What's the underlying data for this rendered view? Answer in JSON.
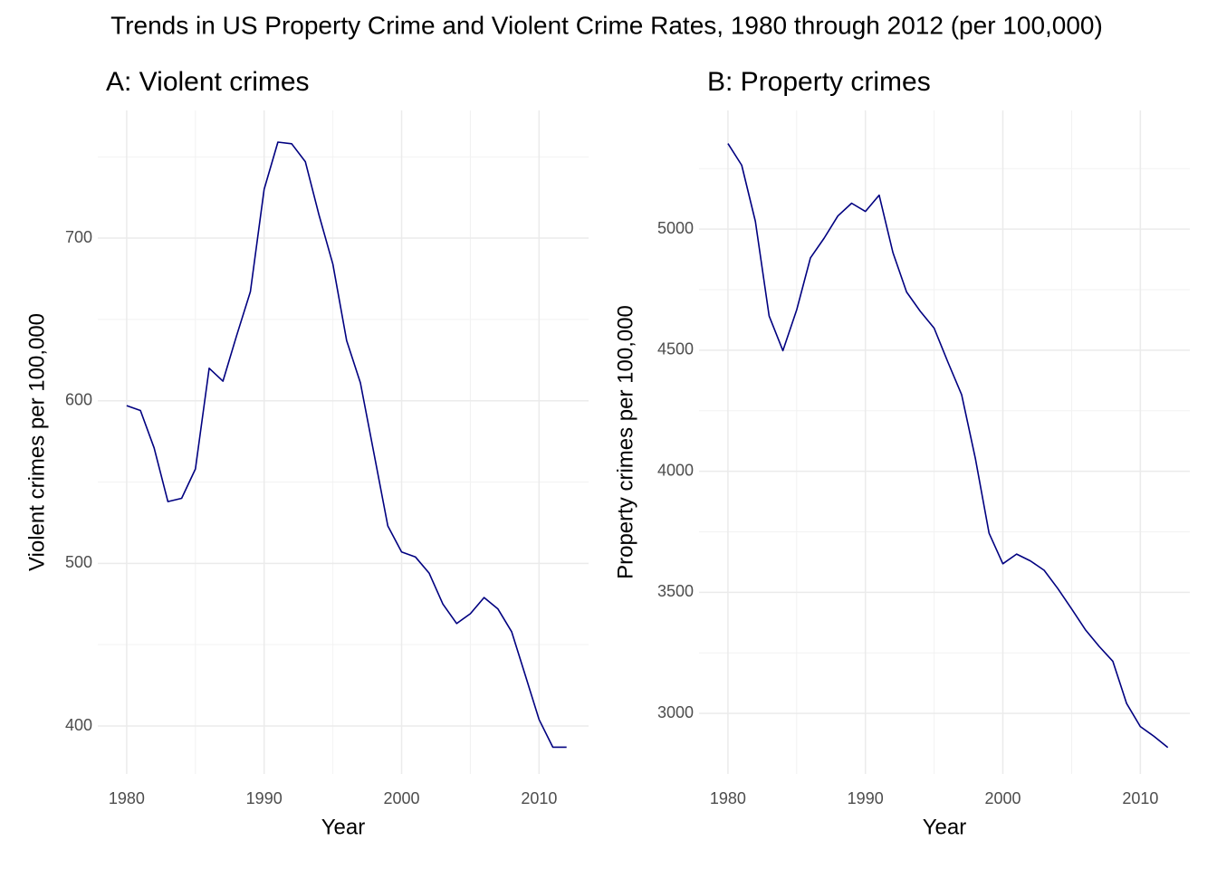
{
  "title": "Trends in US Property Crime and Violent Crime Rates, 1980 through 2012 (per 100,000)",
  "chart_data": [
    {
      "type": "line",
      "title": "A: Violent crimes",
      "x_label": "Year",
      "y_label": "Violent crimes per 100,000",
      "x": [
        1980,
        1981,
        1982,
        1983,
        1984,
        1985,
        1986,
        1987,
        1988,
        1989,
        1990,
        1991,
        1992,
        1993,
        1994,
        1995,
        1996,
        1997,
        1998,
        1999,
        2000,
        2001,
        2002,
        2003,
        2004,
        2005,
        2006,
        2007,
        2008,
        2009,
        2010,
        2011,
        2012
      ],
      "values": [
        597,
        594,
        571,
        538,
        540,
        558,
        620,
        612,
        640,
        667,
        730,
        759,
        758,
        747,
        714,
        684,
        637,
        611,
        567,
        523,
        507,
        504,
        494,
        475,
        463,
        469,
        479,
        472,
        458,
        431,
        404,
        387,
        387
      ],
      "color": "#000080",
      "xlim": [
        1977.9,
        2013.6
      ],
      "xticks": [
        1980,
        1990,
        2000,
        2010
      ],
      "xminor": [
        1985,
        1995,
        2005
      ],
      "ylim": [
        370.5,
        778.5
      ],
      "yticks": [
        400,
        500,
        600,
        700
      ],
      "yminor": [
        450,
        550,
        650,
        750
      ],
      "grid": true
    },
    {
      "type": "line",
      "title": "B: Property crimes",
      "x_label": "Year",
      "y_label": "Property crimes per 100,000",
      "x": [
        1980,
        1981,
        1982,
        1983,
        1984,
        1985,
        1986,
        1987,
        1988,
        1989,
        1990,
        1991,
        1992,
        1993,
        1994,
        1995,
        1996,
        1997,
        1998,
        1999,
        2000,
        2001,
        2002,
        2003,
        2004,
        2005,
        2006,
        2007,
        2008,
        2009,
        2010,
        2011,
        2012
      ],
      "values": [
        5353,
        5264,
        5032,
        4641,
        4498,
        4666,
        4881,
        4963,
        5054,
        5107,
        5073,
        5140,
        4903,
        4740,
        4660,
        4591,
        4451,
        4316,
        4052,
        3744,
        3618,
        3658,
        3630,
        3591,
        3515,
        3432,
        3346,
        3277,
        3215,
        3041,
        2946,
        2905,
        2859
      ],
      "color": "#000080",
      "xlim": [
        1977.9,
        2013.6
      ],
      "xticks": [
        1980,
        1990,
        2000,
        2010
      ],
      "xminor": [
        1985,
        1995,
        2005
      ],
      "ylim": [
        2750,
        5490
      ],
      "yticks": [
        3000,
        3500,
        4000,
        4500,
        5000
      ],
      "yminor": [
        3250,
        3750,
        4250,
        4750,
        5250
      ],
      "grid": true
    }
  ]
}
